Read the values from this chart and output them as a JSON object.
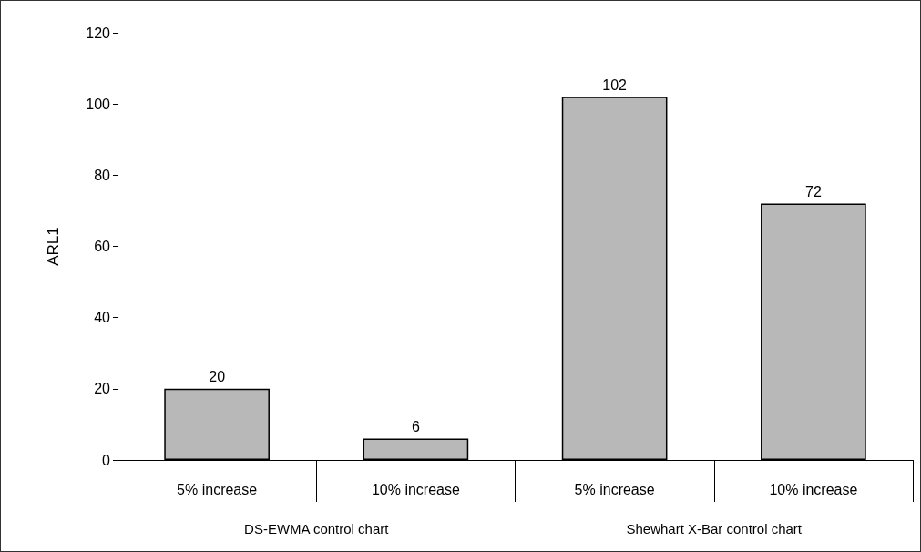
{
  "chart_data": {
    "type": "bar",
    "ylabel": "ARL1",
    "categories": [
      "5% increase",
      "10% increase",
      "5% increase",
      "10% increase"
    ],
    "values": [
      20,
      6,
      102,
      72
    ],
    "color": "#b8b8b8",
    "ylim": [
      0,
      120
    ],
    "yticks": [
      0,
      20,
      40,
      60,
      80,
      100,
      120
    ],
    "grid": false,
    "data_labels": true,
    "annotations": [
      "DS-EWMA control chart",
      "Shewhart X-Bar control chart"
    ]
  }
}
